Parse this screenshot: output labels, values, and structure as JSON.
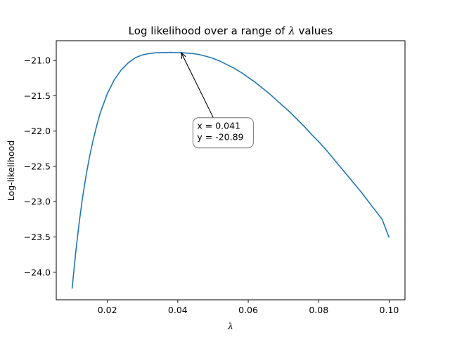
{
  "chart_data": {
    "type": "line",
    "title_prefix": "Log likelihood over a range of ",
    "title_symbol": "λ",
    "title_suffix": " values",
    "xlabel": "λ",
    "ylabel": "Log-likelihood",
    "xlim": [
      0.0055,
      0.1045
    ],
    "ylim": [
      -24.39,
      -20.72
    ],
    "xticks": [
      0.02,
      0.04,
      0.06,
      0.08,
      0.1
    ],
    "xtick_labels": [
      "0.02",
      "0.04",
      "0.06",
      "0.08",
      "0.10"
    ],
    "yticks": [
      -21.0,
      -21.5,
      -22.0,
      -22.5,
      -23.0,
      -23.5,
      -24.0
    ],
    "ytick_labels": [
      "−21.0",
      "−21.5",
      "−22.0",
      "−22.5",
      "−23.0",
      "−23.5",
      "−24.0"
    ],
    "grid": false,
    "series": [
      {
        "color": "#1f77b4",
        "x": [
          0.01,
          0.011,
          0.012,
          0.013,
          0.014,
          0.015,
          0.016,
          0.017,
          0.018,
          0.02,
          0.022,
          0.024,
          0.026,
          0.028,
          0.03,
          0.032,
          0.034,
          0.036,
          0.038,
          0.04,
          0.041,
          0.042,
          0.044,
          0.046,
          0.048,
          0.05,
          0.052,
          0.054,
          0.056,
          0.058,
          0.06,
          0.062,
          0.064,
          0.066,
          0.068,
          0.07,
          0.072,
          0.074,
          0.076,
          0.078,
          0.08,
          0.082,
          0.084,
          0.086,
          0.088,
          0.09,
          0.092,
          0.094,
          0.096,
          0.098,
          0.1
        ],
        "y": [
          -24.23,
          -23.73,
          -23.3,
          -22.93,
          -22.62,
          -22.35,
          -22.12,
          -21.92,
          -21.74,
          -21.47,
          -21.27,
          -21.13,
          -21.03,
          -20.96,
          -20.92,
          -20.9,
          -20.89,
          -20.888,
          -20.885,
          -20.889,
          -20.89,
          -20.893,
          -20.9,
          -20.915,
          -20.94,
          -20.97,
          -21.01,
          -21.06,
          -21.11,
          -21.17,
          -21.24,
          -21.31,
          -21.39,
          -21.47,
          -21.56,
          -21.65,
          -21.74,
          -21.84,
          -21.94,
          -22.05,
          -22.15,
          -22.26,
          -22.38,
          -22.5,
          -22.62,
          -22.74,
          -22.86,
          -22.99,
          -23.12,
          -23.25,
          -23.51
        ]
      }
    ],
    "annotation": {
      "text_line1": "x = 0.041",
      "text_line2": "y = -20.89",
      "point": [
        0.041,
        -20.89
      ],
      "text_anchor_data": [
        0.0455,
        -21.97
      ]
    }
  },
  "colors": {
    "line": "#1f77b4",
    "axes": "#000000",
    "annotation_box_edge": "#808080"
  }
}
